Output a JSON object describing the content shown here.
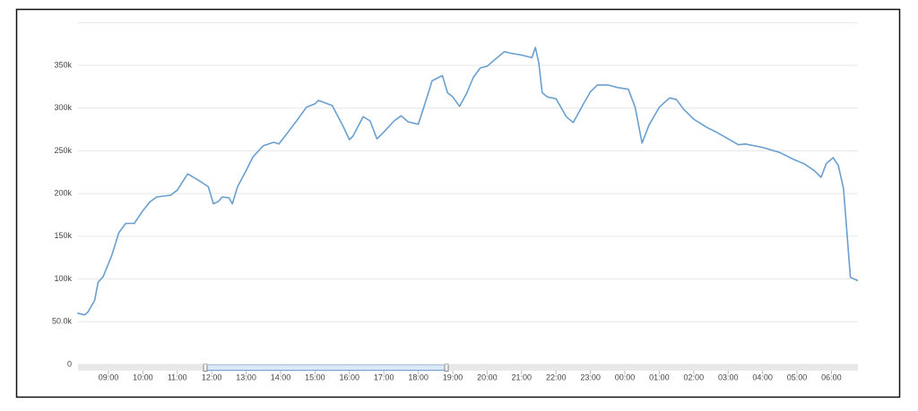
{
  "chart_data": {
    "type": "line",
    "x": [
      8.1,
      8.3,
      8.4,
      8.6,
      8.7,
      8.85,
      9.1,
      9.3,
      9.5,
      9.75,
      10.0,
      10.2,
      10.4,
      10.6,
      10.8,
      11.0,
      11.3,
      11.6,
      11.9,
      12.05,
      12.2,
      12.3,
      12.5,
      12.6,
      12.75,
      13.0,
      13.2,
      13.5,
      13.8,
      13.95,
      14.2,
      14.5,
      14.75,
      15.0,
      15.1,
      15.5,
      15.8,
      16.0,
      16.1,
      16.4,
      16.6,
      16.8,
      17.0,
      17.3,
      17.5,
      17.7,
      18.0,
      18.2,
      18.4,
      18.6,
      18.7,
      18.85,
      19.0,
      19.2,
      19.4,
      19.6,
      19.8,
      20.0,
      20.2,
      20.5,
      20.7,
      21.0,
      21.3,
      21.4,
      21.5,
      21.6,
      21.75,
      22.0,
      22.3,
      22.5,
      22.8,
      23.0,
      23.2,
      23.5,
      23.8,
      24.1,
      24.3,
      24.5,
      24.7,
      25.0,
      25.3,
      25.5,
      25.7,
      26.0,
      26.4,
      26.7,
      27.0,
      27.3,
      27.5,
      28.0,
      28.5,
      28.9,
      29.2,
      29.5,
      29.7,
      29.85,
      30.05,
      30.2,
      30.35,
      30.55,
      30.77
    ],
    "values": [
      60000,
      58000,
      61000,
      75000,
      96000,
      103000,
      128000,
      154000,
      165000,
      165000,
      180000,
      190000,
      196000,
      197000,
      198000,
      204000,
      223000,
      216000,
      208000,
      188000,
      191000,
      196000,
      195000,
      188000,
      208000,
      227000,
      243000,
      256000,
      260000,
      258000,
      271000,
      287000,
      301000,
      305000,
      309000,
      303000,
      280000,
      263000,
      267000,
      290000,
      285000,
      264000,
      272000,
      285000,
      291000,
      284000,
      281000,
      306000,
      332000,
      336000,
      338000,
      318000,
      313000,
      302000,
      317000,
      336000,
      347000,
      349000,
      356000,
      366000,
      364000,
      362000,
      359000,
      371000,
      353000,
      318000,
      313000,
      311000,
      290000,
      283000,
      305000,
      319000,
      327000,
      327000,
      324000,
      322000,
      301000,
      259000,
      280000,
      301000,
      312000,
      310000,
      299000,
      287000,
      277000,
      271000,
      264000,
      257000,
      258000,
      254000,
      248000,
      240000,
      235000,
      227000,
      219000,
      235000,
      242000,
      233000,
      206000,
      102000,
      98000
    ],
    "color": "#6a9fd0",
    "xlim": [
      8.1,
      30.77
    ],
    "xticks": [
      {
        "value": 9,
        "label": "09:00"
      },
      {
        "value": 10,
        "label": "10:00"
      },
      {
        "value": 11,
        "label": "11:00"
      },
      {
        "value": 12,
        "label": "12:00"
      },
      {
        "value": 13,
        "label": "13:00"
      },
      {
        "value": 14,
        "label": "14:00"
      },
      {
        "value": 15,
        "label": "15:00"
      },
      {
        "value": 16,
        "label": "16:00"
      },
      {
        "value": 17,
        "label": "17:00"
      },
      {
        "value": 18,
        "label": "18:00"
      },
      {
        "value": 19,
        "label": "19:00"
      },
      {
        "value": 20,
        "label": "20:00"
      },
      {
        "value": 21,
        "label": "21:00"
      },
      {
        "value": 22,
        "label": "22:00"
      },
      {
        "value": 23,
        "label": "23:00"
      },
      {
        "value": 24,
        "label": "00:00"
      },
      {
        "value": 25,
        "label": "01:00"
      },
      {
        "value": 26,
        "label": "02:00"
      },
      {
        "value": 27,
        "label": "03:00"
      },
      {
        "value": 28,
        "label": "04:00"
      },
      {
        "value": 29,
        "label": "05:00"
      },
      {
        "value": 30,
        "label": "06:00"
      }
    ],
    "ylim": [
      0,
      400000
    ],
    "yticks": [
      0,
      {
        "value": 50000,
        "label": "50.0k"
      },
      {
        "value": 100000,
        "label": "100k"
      },
      {
        "value": 150000,
        "label": "150k"
      },
      {
        "value": 200000,
        "label": "200k"
      },
      {
        "value": 250000,
        "label": "250k"
      },
      {
        "value": 300000,
        "label": "300k"
      },
      {
        "value": 350000,
        "label": "350k"
      }
    ],
    "grid": true
  }
}
